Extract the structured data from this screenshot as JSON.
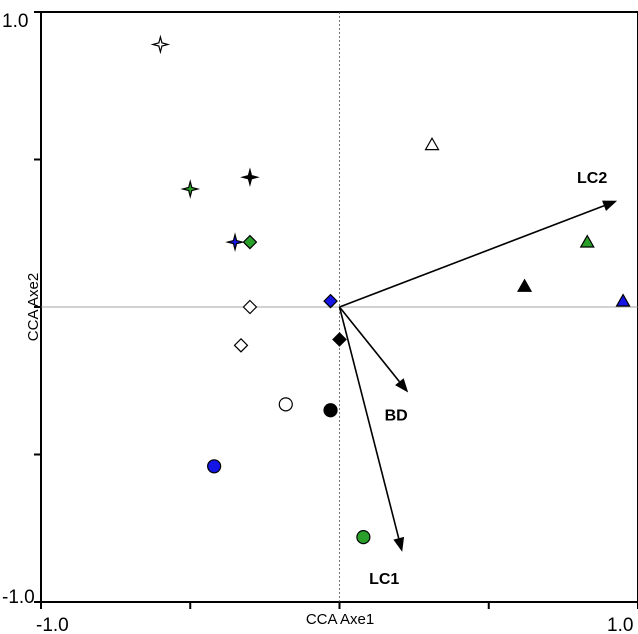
{
  "chart_data": {
    "type": "scatter",
    "title": "",
    "xlabel": "CCA Axe1",
    "ylabel": "CCA Axe2",
    "xlim": [
      -1.0,
      1.0
    ],
    "ylim": [
      -1.0,
      1.0
    ],
    "x_tick_labels": [
      "-1.0",
      "1.0"
    ],
    "y_tick_labels": [
      "1.0",
      "-1.0"
    ],
    "grid": false,
    "colors": {
      "black": "#000000",
      "white": "#ffffff",
      "green": "#2aa02a",
      "blue": "#1515e6"
    },
    "points": [
      {
        "x": -0.6,
        "y": 0.89,
        "shape": "star",
        "fill": "white"
      },
      {
        "x": -0.5,
        "y": 0.4,
        "shape": "star",
        "fill": "green"
      },
      {
        "x": -0.3,
        "y": 0.44,
        "shape": "star",
        "fill": "black"
      },
      {
        "x": -0.3,
        "y": 0.22,
        "shape": "diamond",
        "fill": "green"
      },
      {
        "x": -0.3,
        "y": -0.0,
        "shape": "diamond",
        "fill": "white"
      },
      {
        "x": -0.35,
        "y": 0.22,
        "shape": "star",
        "fill": "blue"
      },
      {
        "x": -0.03,
        "y": 0.02,
        "shape": "diamond",
        "fill": "blue"
      },
      {
        "x": 0.0,
        "y": -0.11,
        "shape": "diamond",
        "fill": "black"
      },
      {
        "x": -0.33,
        "y": -0.13,
        "shape": "diamond",
        "fill": "white"
      },
      {
        "x": -0.18,
        "y": -0.33,
        "shape": "circle",
        "fill": "white"
      },
      {
        "x": -0.03,
        "y": -0.35,
        "shape": "circle",
        "fill": "black"
      },
      {
        "x": -0.42,
        "y": -0.54,
        "shape": "circle",
        "fill": "blue"
      },
      {
        "x": 0.08,
        "y": -0.78,
        "shape": "circle",
        "fill": "green"
      },
      {
        "x": 0.31,
        "y": 0.55,
        "shape": "triangle",
        "fill": "white"
      },
      {
        "x": 0.83,
        "y": 0.22,
        "shape": "triangle",
        "fill": "green"
      },
      {
        "x": 0.62,
        "y": 0.07,
        "shape": "triangle",
        "fill": "black"
      },
      {
        "x": 0.95,
        "y": 0.02,
        "shape": "triangle",
        "fill": "blue"
      }
    ],
    "arrows": [
      {
        "label": "LC2",
        "x": 0.93,
        "y": 0.36
      },
      {
        "label": "BD",
        "x": 0.23,
        "y": -0.29
      },
      {
        "label": "LC1",
        "x": 0.21,
        "y": -0.83
      }
    ]
  }
}
